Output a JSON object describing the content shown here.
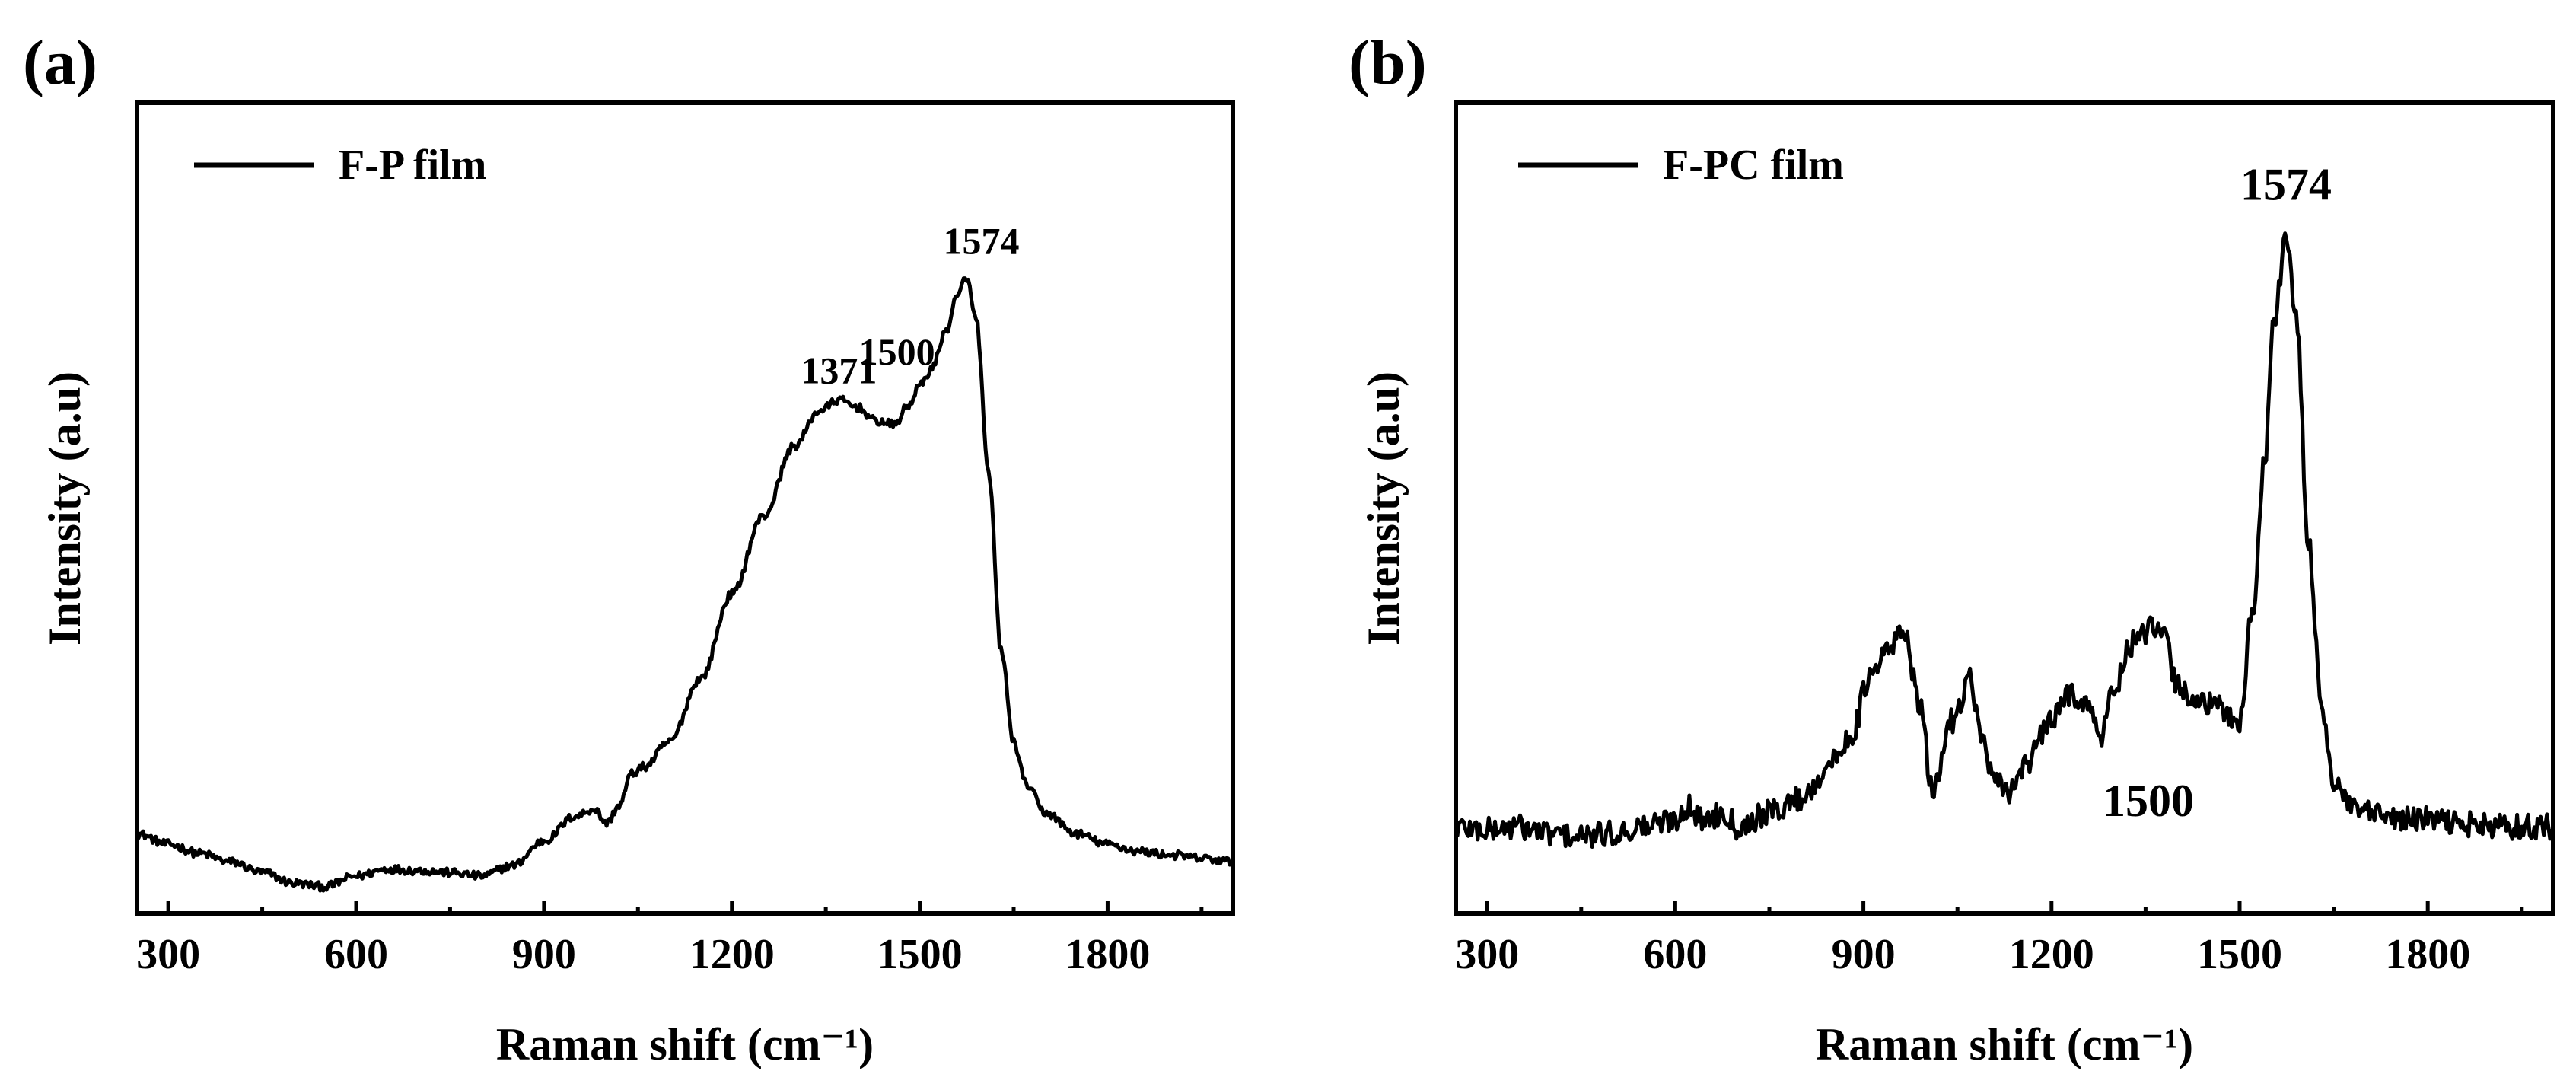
{
  "chart_data": [
    {
      "type": "line",
      "panel_label": "(a)",
      "xlabel": "Raman shift (cm⁻¹)",
      "ylabel": "Intensity (a.u)",
      "xlim": [
        250,
        2000
      ],
      "ylim": [
        0,
        1
      ],
      "xticks": [
        300,
        600,
        900,
        1200,
        1500,
        1800
      ],
      "xtick_labels": [
        "300",
        "600",
        "900",
        "1200",
        "1500",
        "1800"
      ],
      "legend": {
        "label": "F-P film",
        "position": "top-left"
      },
      "series": [
        {
          "name": "F-P film",
          "x": [
            250,
            300,
            350,
            400,
            450,
            500,
            550,
            600,
            650,
            700,
            750,
            800,
            850,
            900,
            950,
            980,
            1000,
            1020,
            1040,
            1060,
            1100,
            1150,
            1200,
            1250,
            1300,
            1340,
            1371,
            1400,
            1430,
            1460,
            1480,
            1500,
            1520,
            1540,
            1560,
            1574,
            1590,
            1610,
            1630,
            1650,
            1670,
            1700,
            1750,
            1800,
            1850,
            1900,
            1950,
            2000
          ],
          "y": [
            0.09,
            0.075,
            0.062,
            0.05,
            0.035,
            0.02,
            0.015,
            0.03,
            0.04,
            0.038,
            0.035,
            0.03,
            0.045,
            0.08,
            0.115,
            0.125,
            0.105,
            0.13,
            0.175,
            0.185,
            0.22,
            0.31,
            0.43,
            0.54,
            0.64,
            0.69,
            0.705,
            0.695,
            0.675,
            0.67,
            0.695,
            0.725,
            0.75,
            0.8,
            0.85,
            0.88,
            0.82,
            0.6,
            0.35,
            0.22,
            0.16,
            0.12,
            0.09,
            0.075,
            0.065,
            0.06,
            0.055,
            0.05
          ]
        }
      ],
      "annotations": [
        {
          "text": "1371",
          "x": 1371,
          "y": 0.705
        },
        {
          "text": "1500",
          "x": 1500,
          "y": 0.725
        },
        {
          "text": "1574",
          "x": 1574,
          "y": 0.88
        }
      ]
    },
    {
      "type": "line",
      "panel_label": "(b)",
      "xlabel": "Raman shift (cm⁻¹)",
      "ylabel": "Intensity (a.u)",
      "xlim": [
        250,
        2000
      ],
      "ylim": [
        0,
        1
      ],
      "xticks": [
        300,
        600,
        900,
        1200,
        1500,
        1800
      ],
      "xtick_labels": [
        "300",
        "600",
        "900",
        "1200",
        "1500",
        "1800"
      ],
      "legend": {
        "label": "F-PC film",
        "position": "top-left"
      },
      "series": [
        {
          "name": "F-PC film",
          "x": [
            250,
            300,
            350,
            400,
            450,
            500,
            550,
            600,
            620,
            640,
            680,
            700,
            750,
            800,
            850,
            880,
            910,
            940,
            965,
            990,
            1010,
            1040,
            1070,
            1090,
            1110,
            1130,
            1160,
            1200,
            1230,
            1250,
            1280,
            1300,
            1330,
            1360,
            1380,
            1400,
            1430,
            1460,
            1500,
            1520,
            1540,
            1555,
            1574,
            1590,
            1610,
            1630,
            1650,
            1680,
            1720,
            1760,
            1800,
            1850,
            1900,
            1950,
            2000
          ],
          "y": [
            0.1,
            0.095,
            0.1,
            0.09,
            0.085,
            0.09,
            0.1,
            0.11,
            0.13,
            0.11,
            0.12,
            0.1,
            0.12,
            0.14,
            0.19,
            0.23,
            0.31,
            0.35,
            0.38,
            0.27,
            0.15,
            0.25,
            0.31,
            0.22,
            0.16,
            0.15,
            0.19,
            0.25,
            0.29,
            0.28,
            0.23,
            0.3,
            0.36,
            0.38,
            0.37,
            0.3,
            0.28,
            0.27,
            0.25,
            0.4,
            0.62,
            0.82,
            0.94,
            0.82,
            0.5,
            0.28,
            0.16,
            0.125,
            0.115,
            0.11,
            0.11,
            0.105,
            0.1,
            0.1,
            0.1
          ]
        }
      ],
      "annotations": [
        {
          "text": "1500",
          "x": 1500,
          "y": 0.25
        },
        {
          "text": "1574",
          "x": 1574,
          "y": 0.94
        }
      ]
    }
  ]
}
